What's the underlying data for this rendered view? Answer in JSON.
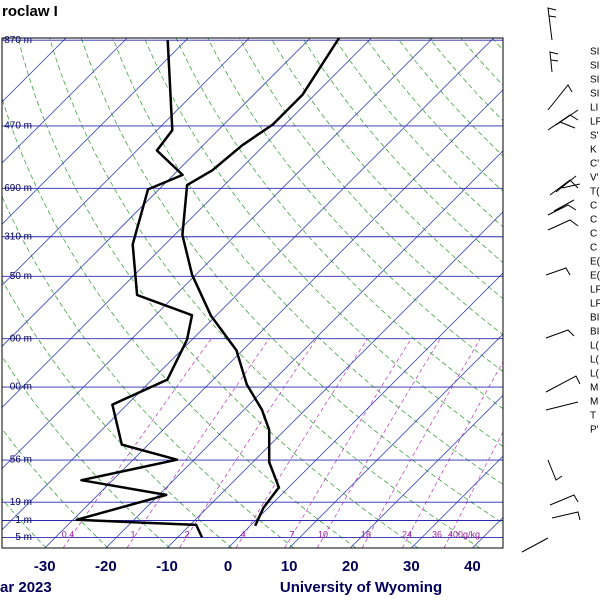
{
  "chart_data": {
    "type": "skewt",
    "title": "roclaw I",
    "date": "ar 2023",
    "source": "University of Wyoming",
    "xlim": [
      -37,
      45
    ],
    "xticks": [
      -30,
      -20,
      -10,
      0,
      10,
      20,
      30,
      40
    ],
    "ylim": [
      100,
      1050
    ],
    "log_y": true,
    "yticks": [
      {
        "value": 101,
        "label": "870 m"
      },
      {
        "value": 150,
        "label": "470 m"
      },
      {
        "value": 200,
        "label": "690 m"
      },
      {
        "value": 250,
        "label": "310 m"
      },
      {
        "value": 300,
        "label": "50 m"
      },
      {
        "value": 400,
        "label": "00 m"
      },
      {
        "value": 500,
        "label": "00 m"
      },
      {
        "value": 700,
        "label": "56 m"
      },
      {
        "value": 850,
        "label": "19 m"
      },
      {
        "value": 925,
        "label": "1 m"
      },
      {
        "value": 1000,
        "label": "5 m"
      }
    ],
    "mixing_ratio_labels": [
      "0.4",
      "1",
      "2",
      "4",
      "7",
      "10",
      "16",
      "24",
      "36",
      "400g/kg"
    ],
    "series": [
      {
        "color": "#000000",
        "pressure": [
          948,
          872,
          794,
          707,
          609,
          555,
          494,
          422,
          360,
          298,
          248,
          197,
          184,
          164,
          149,
          130,
          100
        ],
        "values": [
          0.8,
          -0.8,
          -1.6,
          -7.3,
          -12.6,
          -17.1,
          -23.7,
          -31.0,
          -40.8,
          -50.6,
          -58.7,
          -66.1,
          -64.4,
          -63.6,
          -62.0,
          -62.0,
          -65.3
        ]
      },
      {
        "color": "#000000",
        "pressure": [
          1000,
          944,
          922,
          822,
          768,
          699,
          652,
          542,
          483,
          402,
          359,
          327,
          259,
          201,
          188,
          168,
          153,
          101
        ],
        "values": [
          -6.0,
          -9.0,
          -29.4,
          -18.8,
          -35.1,
          -22.8,
          -34.3,
          -42.4,
          -37.5,
          -40.8,
          -44.0,
          -56.3,
          -65.3,
          -71.8,
          -68.5,
          -76.7,
          -77.5,
          -93.0
        ]
      }
    ],
    "side_labels": [
      "SI",
      "SI",
      "SI",
      "SI",
      "LI",
      "LF",
      "S'",
      "K",
      "C'",
      "V'",
      "T(",
      "C",
      "C",
      "C",
      "C",
      "E(",
      "E(",
      "LF",
      "LF",
      "BI",
      "BI",
      "L(",
      "L(",
      "L(",
      "M",
      "M",
      "T",
      "P'"
    ]
  }
}
